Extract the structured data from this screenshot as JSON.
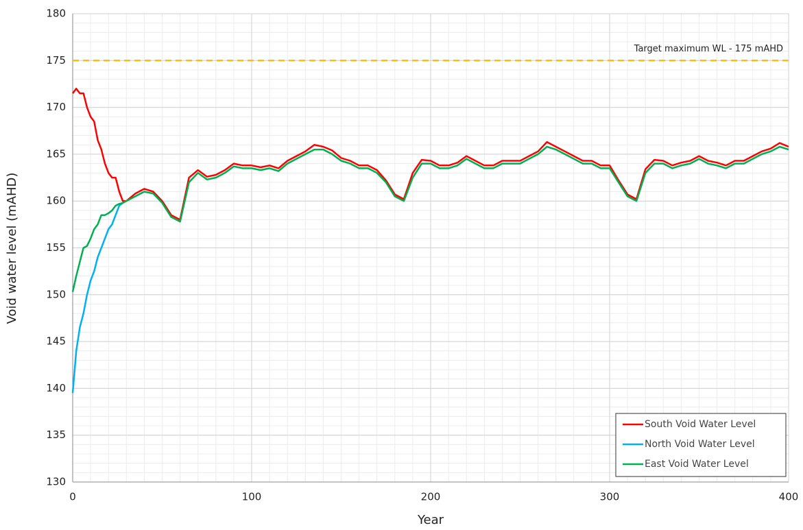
{
  "chart_data": {
    "type": "line",
    "xlabel": "Year",
    "ylabel": "Void water level (mAHD)",
    "x": [
      0,
      2,
      4,
      6,
      8,
      10,
      12,
      14,
      16,
      18,
      20,
      22,
      24,
      26,
      28,
      30,
      35,
      40,
      45,
      50,
      55,
      60,
      65,
      70,
      75,
      80,
      85,
      90,
      95,
      100,
      105,
      110,
      115,
      120,
      125,
      130,
      135,
      140,
      145,
      150,
      155,
      160,
      165,
      170,
      175,
      180,
      185,
      190,
      195,
      200,
      205,
      210,
      215,
      220,
      225,
      230,
      235,
      240,
      245,
      250,
      255,
      260,
      265,
      270,
      275,
      280,
      285,
      290,
      295,
      300,
      305,
      310,
      315,
      320,
      325,
      330,
      335,
      340,
      345,
      350,
      355,
      360,
      365,
      370,
      375,
      380,
      385,
      390,
      395,
      400
    ],
    "series": [
      {
        "name": "South Void Water Level",
        "color": "#ff0000",
        "values": [
          171.5,
          172,
          171.5,
          171.5,
          170,
          169,
          168.5,
          166.5,
          165.5,
          164,
          163,
          162.5,
          162.5,
          161,
          160,
          160,
          160.8,
          161.3,
          161,
          160,
          158.5,
          158,
          162.5,
          163.3,
          162.6,
          162.8,
          163.3,
          164,
          163.8,
          163.8,
          163.6,
          163.8,
          163.5,
          164.3,
          164.8,
          165.3,
          166,
          165.8,
          165.4,
          164.6,
          164.3,
          163.8,
          163.8,
          163.3,
          162.2,
          160.7,
          160.2,
          163,
          164.4,
          164.3,
          163.8,
          163.8,
          164.1,
          164.8,
          164.3,
          163.8,
          163.8,
          164.3,
          164.3,
          164.3,
          164.8,
          165.3,
          166.3,
          165.8,
          165.3,
          164.8,
          164.3,
          164.3,
          163.8,
          163.8,
          162.2,
          160.7,
          160.2,
          163.4,
          164.4,
          164.3,
          163.8,
          164.1,
          164.3,
          164.8,
          164.3,
          164.1,
          163.8,
          164.3,
          164.3,
          164.8,
          165.3,
          165.6,
          166.2,
          165.8
        ]
      },
      {
        "name": "North Void Water Level",
        "color": "#00b0f0",
        "values": [
          139.5,
          144,
          146.5,
          148,
          150,
          151.5,
          152.5,
          154,
          155,
          156,
          157,
          157.5,
          158.5,
          159.5,
          159.8,
          null,
          null,
          null,
          null,
          null,
          null,
          null,
          null,
          null,
          null,
          null,
          null,
          null,
          null,
          null,
          null,
          null,
          null,
          null,
          null,
          null,
          null,
          null,
          null,
          null,
          null,
          null,
          null,
          null,
          null,
          null,
          null,
          null,
          null,
          null,
          null,
          null,
          null,
          null,
          null,
          null,
          null,
          null,
          null,
          null,
          null,
          null,
          null,
          null,
          null,
          null,
          null,
          null,
          null,
          null,
          null,
          null,
          null,
          null,
          null,
          null,
          null,
          null,
          null,
          null,
          null,
          null,
          null,
          null,
          null,
          null,
          null,
          null,
          null,
          null
        ]
      },
      {
        "name": "East Void Water Level",
        "color": "#00b050",
        "values": [
          150.3,
          152,
          153.5,
          155,
          155.2,
          156,
          157,
          157.5,
          158.5,
          158.5,
          158.7,
          159,
          159.5,
          159.7,
          159.8,
          160,
          160.5,
          161,
          160.8,
          159.8,
          158.3,
          157.8,
          162,
          163,
          162.3,
          162.5,
          163,
          163.7,
          163.5,
          163.5,
          163.3,
          163.5,
          163.2,
          164,
          164.5,
          165,
          165.5,
          165.5,
          165,
          164.3,
          164,
          163.5,
          163.5,
          163,
          162,
          160.5,
          160,
          162.5,
          164,
          164,
          163.5,
          163.5,
          163.8,
          164.5,
          164,
          163.5,
          163.5,
          164,
          164,
          164,
          164.5,
          165,
          165.8,
          165.5,
          165,
          164.5,
          164,
          164,
          163.5,
          163.5,
          162,
          160.5,
          160,
          163,
          164,
          164,
          163.5,
          163.8,
          164,
          164.5,
          164,
          163.8,
          163.5,
          164,
          164,
          164.5,
          165,
          165.3,
          165.8,
          165.5
        ]
      }
    ],
    "reference_line": {
      "value": 175,
      "color": "#ffc000",
      "label": "Target maximum WL - 175 mAHD"
    },
    "xlim": [
      0,
      400
    ],
    "xticks": [
      0,
      100,
      200,
      300,
      400
    ],
    "ylim": [
      130,
      180
    ],
    "yticks": [
      130,
      135,
      140,
      145,
      150,
      155,
      160,
      165,
      170,
      175,
      180
    ],
    "grid": true,
    "minor_grid": {
      "x": 10,
      "y": 1
    },
    "legend": "lower right"
  }
}
